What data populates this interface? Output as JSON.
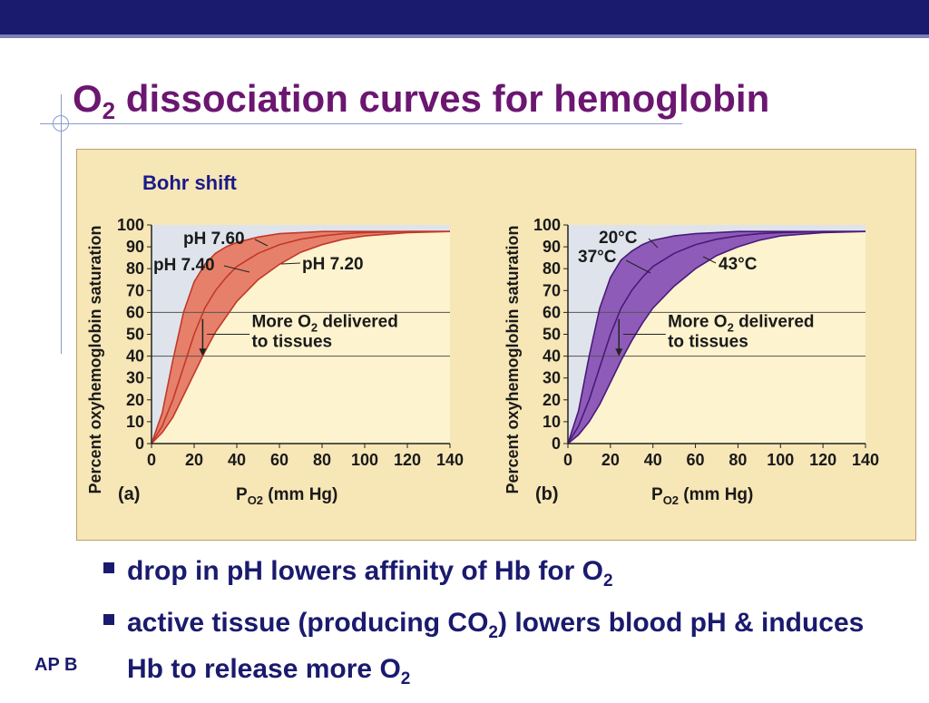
{
  "slide": {
    "title_main": "O",
    "title_sub": "2",
    "title_rest": " dissociation curves for hemoglobin",
    "footer": "AP B",
    "bullets": [
      {
        "t1": "drop in pH lowers affinity of Hb for O",
        "s1": "2",
        "t2": ""
      },
      {
        "t1": "active tissue (producing CO",
        "s1": "2",
        "t2": ") lowers blood pH & induces Hb to release more O",
        "s2": "2"
      }
    ]
  },
  "chart_data": [
    {
      "type": "line",
      "panel_label": "(a)",
      "title": "Bohr shift",
      "ylabel": "Percent oxyhemoglobin saturation",
      "xlabel_main": "P",
      "xlabel_sub": "O2",
      "xlabel_rest": " (mm Hg)",
      "xlim": [
        0,
        140
      ],
      "ylim": [
        0,
        100
      ],
      "xticks": [
        0,
        20,
        40,
        60,
        80,
        100,
        120,
        140
      ],
      "yticks": [
        0,
        10,
        20,
        30,
        40,
        50,
        60,
        70,
        80,
        90,
        100
      ],
      "gridlines_y": [
        40,
        60
      ],
      "band_color": "#e7806a",
      "line_color": "#c0392b",
      "x": [
        0,
        5,
        10,
        15,
        20,
        25,
        30,
        35,
        40,
        50,
        60,
        70,
        80,
        90,
        100,
        120,
        140
      ],
      "series": [
        {
          "name": "pH 7.60",
          "values": [
            0,
            14,
            38,
            60,
            74,
            82,
            87,
            90,
            92,
            94.5,
            96,
            96.5,
            97,
            97,
            97,
            97,
            97
          ]
        },
        {
          "name": "pH 7.40",
          "values": [
            0,
            8,
            20,
            35,
            50,
            62,
            70,
            76,
            81,
            87,
            91,
            93.5,
            95,
            96,
            96.5,
            97,
            97
          ]
        },
        {
          "name": "pH 7.20",
          "values": [
            0,
            5,
            12,
            22,
            32,
            42,
            51,
            58,
            65,
            75,
            82,
            87.5,
            91,
            93.5,
            95,
            96.5,
            97
          ]
        }
      ],
      "annotation_main": "More O",
      "annotation_sub": "2",
      "annotation_rest": " delivered",
      "annotation_line2": "to tissues"
    },
    {
      "type": "line",
      "panel_label": "(b)",
      "title": "",
      "ylabel": "Percent oxyhemoglobin saturation",
      "xlabel_main": "P",
      "xlabel_sub": "O2",
      "xlabel_rest": " (mm Hg)",
      "xlim": [
        0,
        140
      ],
      "ylim": [
        0,
        100
      ],
      "xticks": [
        0,
        20,
        40,
        60,
        80,
        100,
        120,
        140
      ],
      "yticks": [
        0,
        10,
        20,
        30,
        40,
        50,
        60,
        70,
        80,
        90,
        100
      ],
      "gridlines_y": [
        40,
        60
      ],
      "band_color": "#8e5cb8",
      "line_color": "#4a1a7a",
      "x": [
        0,
        5,
        10,
        15,
        20,
        25,
        30,
        35,
        40,
        50,
        60,
        70,
        80,
        90,
        100,
        120,
        140
      ],
      "series": [
        {
          "name": "20°C",
          "values": [
            0,
            15,
            40,
            62,
            76,
            84,
            88,
            91,
            93,
            95,
            96,
            96.5,
            97,
            97,
            97,
            97,
            97
          ]
        },
        {
          "name": "37°C",
          "values": [
            0,
            8,
            20,
            35,
            50,
            62,
            70,
            76,
            81,
            87,
            91,
            93.5,
            95,
            96,
            96.5,
            97,
            97
          ]
        },
        {
          "name": "43°C",
          "values": [
            0,
            4,
            10,
            18,
            28,
            38,
            47,
            55,
            62,
            72,
            80,
            86,
            90,
            93,
            95,
            96.5,
            97
          ]
        }
      ],
      "annotation_main": "More O",
      "annotation_sub": "2",
      "annotation_rest": " delivered",
      "annotation_line2": "to tissues"
    }
  ]
}
